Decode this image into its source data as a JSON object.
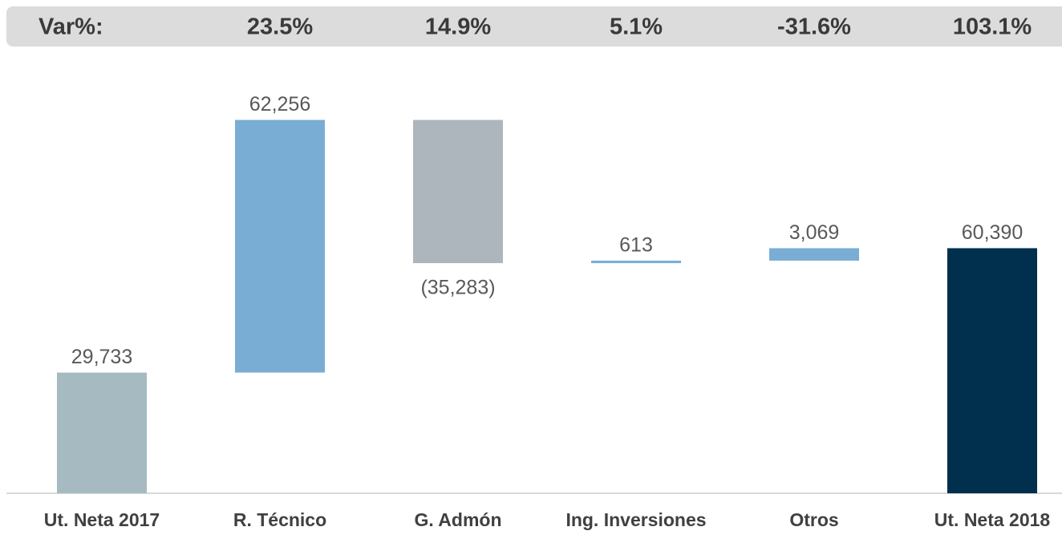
{
  "chart_data": {
    "type": "waterfall",
    "variation": {
      "label": "Var%:",
      "values": [
        "23.5%",
        "14.9%",
        "5.1%",
        "-31.6%",
        "103.1%"
      ]
    },
    "categories": [
      "Ut. Neta 2017",
      "R. Técnico",
      "G. Admón",
      "Ing. Inversiones",
      "Otros",
      "Ut. Neta 2018"
    ],
    "values": [
      29733,
      62256,
      -35283,
      613,
      3069,
      60390
    ],
    "value_labels": [
      "29,733",
      "62,256",
      "(35,283)",
      "613",
      "3,069",
      "60,390"
    ],
    "colors": [
      "#a6bbc1",
      "#7aadd4",
      "#adb5bd",
      "#7aadd4",
      "#7aadd4",
      "#00304d"
    ],
    "ylim": [
      0,
      100000
    ]
  }
}
